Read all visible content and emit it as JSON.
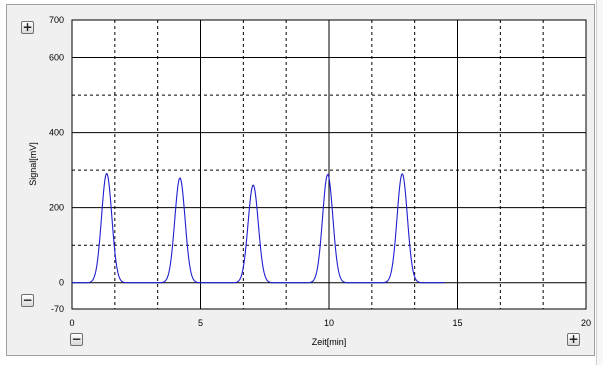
{
  "chart_data": {
    "type": "line",
    "xlabel": "Zeit[min]",
    "ylabel": "Signal[mV]",
    "xlim": [
      0,
      20
    ],
    "ylim": [
      -70,
      700
    ],
    "x_ticks": [
      0,
      5,
      10,
      15,
      20
    ],
    "y_ticks": [
      -70,
      0,
      200,
      400,
      600,
      700
    ],
    "grid": true,
    "line_color": "#1f1fd0",
    "series": [
      {
        "peaks": [
          {
            "center": 1.35,
            "height": 291
          },
          {
            "center": 4.2,
            "height": 279
          },
          {
            "center": 7.05,
            "height": 260
          },
          {
            "center": 9.95,
            "height": 288
          },
          {
            "center": 12.85,
            "height": 290
          }
        ],
        "baseline": 0,
        "x_end": 14.5
      }
    ]
  },
  "controls": {
    "zoom_in_y": "+",
    "zoom_out_y": "−",
    "zoom_out_x": "−",
    "zoom_in_x": "+"
  }
}
